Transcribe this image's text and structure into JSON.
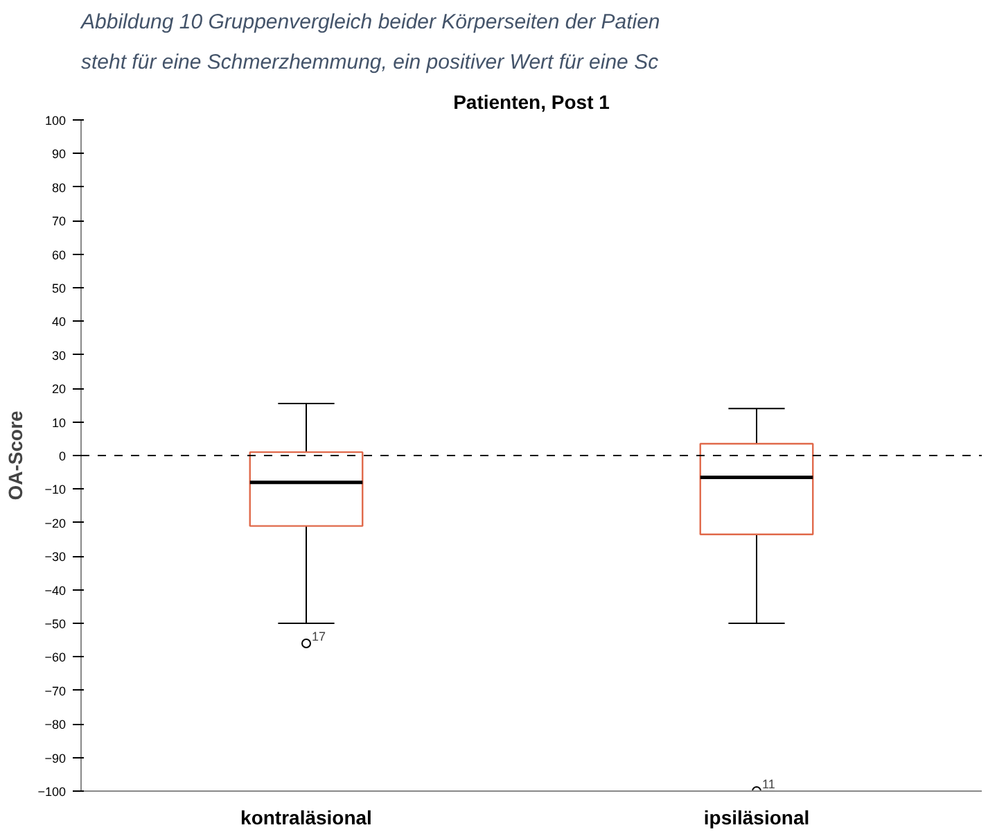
{
  "chart_data": {
    "type": "box",
    "title": "Patienten, Post 1",
    "ylabel": "OA-Score",
    "categories": [
      "kontraläsional",
      "ipsiläsional"
    ],
    "boxes": [
      {
        "low": -50,
        "q1": -21,
        "median": -8,
        "q3": 1,
        "high": 15.5,
        "outliers": [
          -56
        ]
      },
      {
        "low": -50,
        "q1": -23.5,
        "median": -6.5,
        "q3": 3.5,
        "high": 14,
        "outliers": [
          -100
        ]
      }
    ],
    "color": "#e0694a",
    "ylim": [
      -100,
      100
    ],
    "yticks": [
      -100,
      -90,
      -80,
      -70,
      -60,
      -50,
      -40,
      -30,
      -20,
      -10,
      0,
      10,
      20,
      30,
      40,
      50,
      60,
      70,
      80,
      90,
      100
    ],
    "ref_lines": [
      {
        "axis": "y",
        "value": 0,
        "line_style": "dashed",
        "color": "#000000"
      }
    ],
    "grid": false,
    "annotations": [
      "Abbildung 10 Gruppenvergleich beider Körperseiten der Patien",
      "steht für eine Schmerzhemmung, ein positiver Wert für eine Sc",
      "17",
      "11"
    ]
  }
}
